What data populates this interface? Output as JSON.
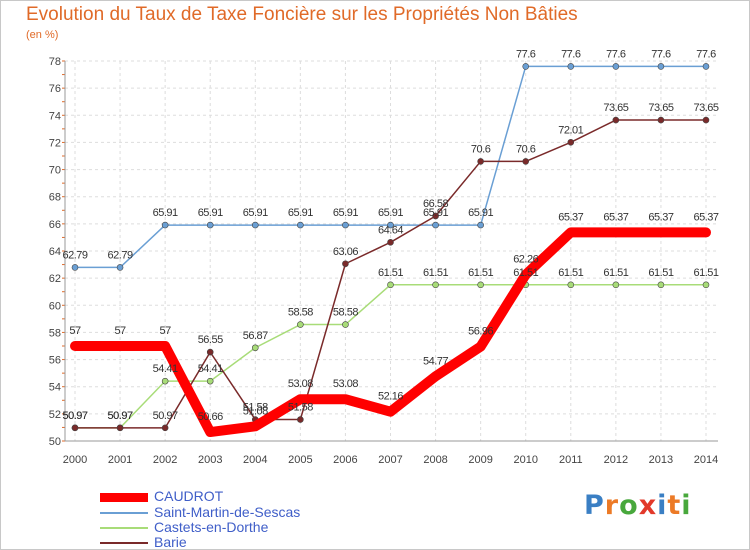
{
  "header": {
    "title": "Evolution du Taux de Taxe Foncière sur les Propriétés Non Bâties",
    "unit": "(en %)"
  },
  "chart_data": {
    "type": "line",
    "title": "Evolution du Taux de Taxe Foncière sur les Propriétés Non Bâties",
    "ylabel": "(en %)",
    "xlabel": "",
    "ylim": [
      50,
      78
    ],
    "yticks": [
      50,
      52,
      54,
      56,
      58,
      60,
      62,
      64,
      66,
      68,
      70,
      72,
      74,
      76,
      78
    ],
    "categories": [
      "2000",
      "2001",
      "2002",
      "2003",
      "2004",
      "2005",
      "2006",
      "2007",
      "2008",
      "2009",
      "2010",
      "2011",
      "2012",
      "2013",
      "2014"
    ],
    "grid": true,
    "series": [
      {
        "name": "CAUDROT",
        "color": "#ff0000",
        "values": [
          57,
          57,
          57,
          50.66,
          51.08,
          53.08,
          53.08,
          52.16,
          54.77,
          56.96,
          62.26,
          65.37,
          65.37,
          65.37,
          65.37
        ],
        "labels": [
          "57",
          "57",
          "57",
          "50.66",
          "51.08",
          "53.08",
          "53.08",
          "52.16",
          "54.77",
          "56.96",
          "62.26",
          "65.37",
          "65.37",
          "65.37",
          "65.37"
        ]
      },
      {
        "name": "Saint-Martin-de-Sescas",
        "color": "#6a9fd4",
        "values": [
          62.79,
          62.79,
          65.91,
          65.91,
          65.91,
          65.91,
          65.91,
          65.91,
          65.91,
          65.91,
          77.6,
          77.6,
          77.6,
          77.6,
          77.6
        ],
        "labels": [
          "62.79",
          "62.79",
          "65.91",
          "65.91",
          "65.91",
          "65.91",
          "65.91",
          "65.91",
          "65.91",
          "65.91",
          "77.6",
          "77.6",
          "77.6",
          "77.6",
          "77.6"
        ]
      },
      {
        "name": "Castets-en-Dorthe",
        "color": "#a8dc78",
        "values": [
          50.97,
          50.97,
          54.41,
          54.41,
          56.87,
          58.58,
          58.58,
          61.51,
          61.51,
          61.51,
          61.51,
          61.51,
          61.51,
          61.51,
          61.51
        ],
        "labels": [
          "50.97",
          "50.97",
          "54.41",
          "54.41",
          "56.87",
          "58.58",
          "58.58",
          "61.51",
          "61.51",
          "61.51",
          "61.51",
          "61.51",
          "61.51",
          "61.51",
          "61.51"
        ]
      },
      {
        "name": "Barie",
        "color": "#7a2a2a",
        "values": [
          50.97,
          50.97,
          50.97,
          56.55,
          51.58,
          51.58,
          63.06,
          64.64,
          66.58,
          70.6,
          70.6,
          72.01,
          73.65,
          73.65,
          73.65
        ],
        "labels": [
          "50.97",
          "50.97",
          "50.97",
          "56.55",
          "51.58",
          "51.58",
          "63.06",
          "64.64",
          "66.58",
          "70.6",
          "70.6",
          "72.01",
          "73.65",
          "73.65",
          "73.65"
        ]
      }
    ]
  },
  "legend": {
    "items": [
      {
        "name": "CAUDROT",
        "color": "#ff0000"
      },
      {
        "name": "Saint-Martin-de-Sescas",
        "color": "#6a9fd4"
      },
      {
        "name": "Castets-en-Dorthe",
        "color": "#a8dc78"
      },
      {
        "name": "Barie",
        "color": "#7a2a2a"
      }
    ]
  },
  "logo": {
    "letters": [
      "P",
      "r",
      "o",
      "x",
      "i",
      "t",
      "i"
    ],
    "colors": [
      "#3a7fc4",
      "#ec7a26",
      "#48a83c",
      "#e2392a",
      "#3a7fc4",
      "#ec7a26",
      "#48a83c"
    ]
  }
}
